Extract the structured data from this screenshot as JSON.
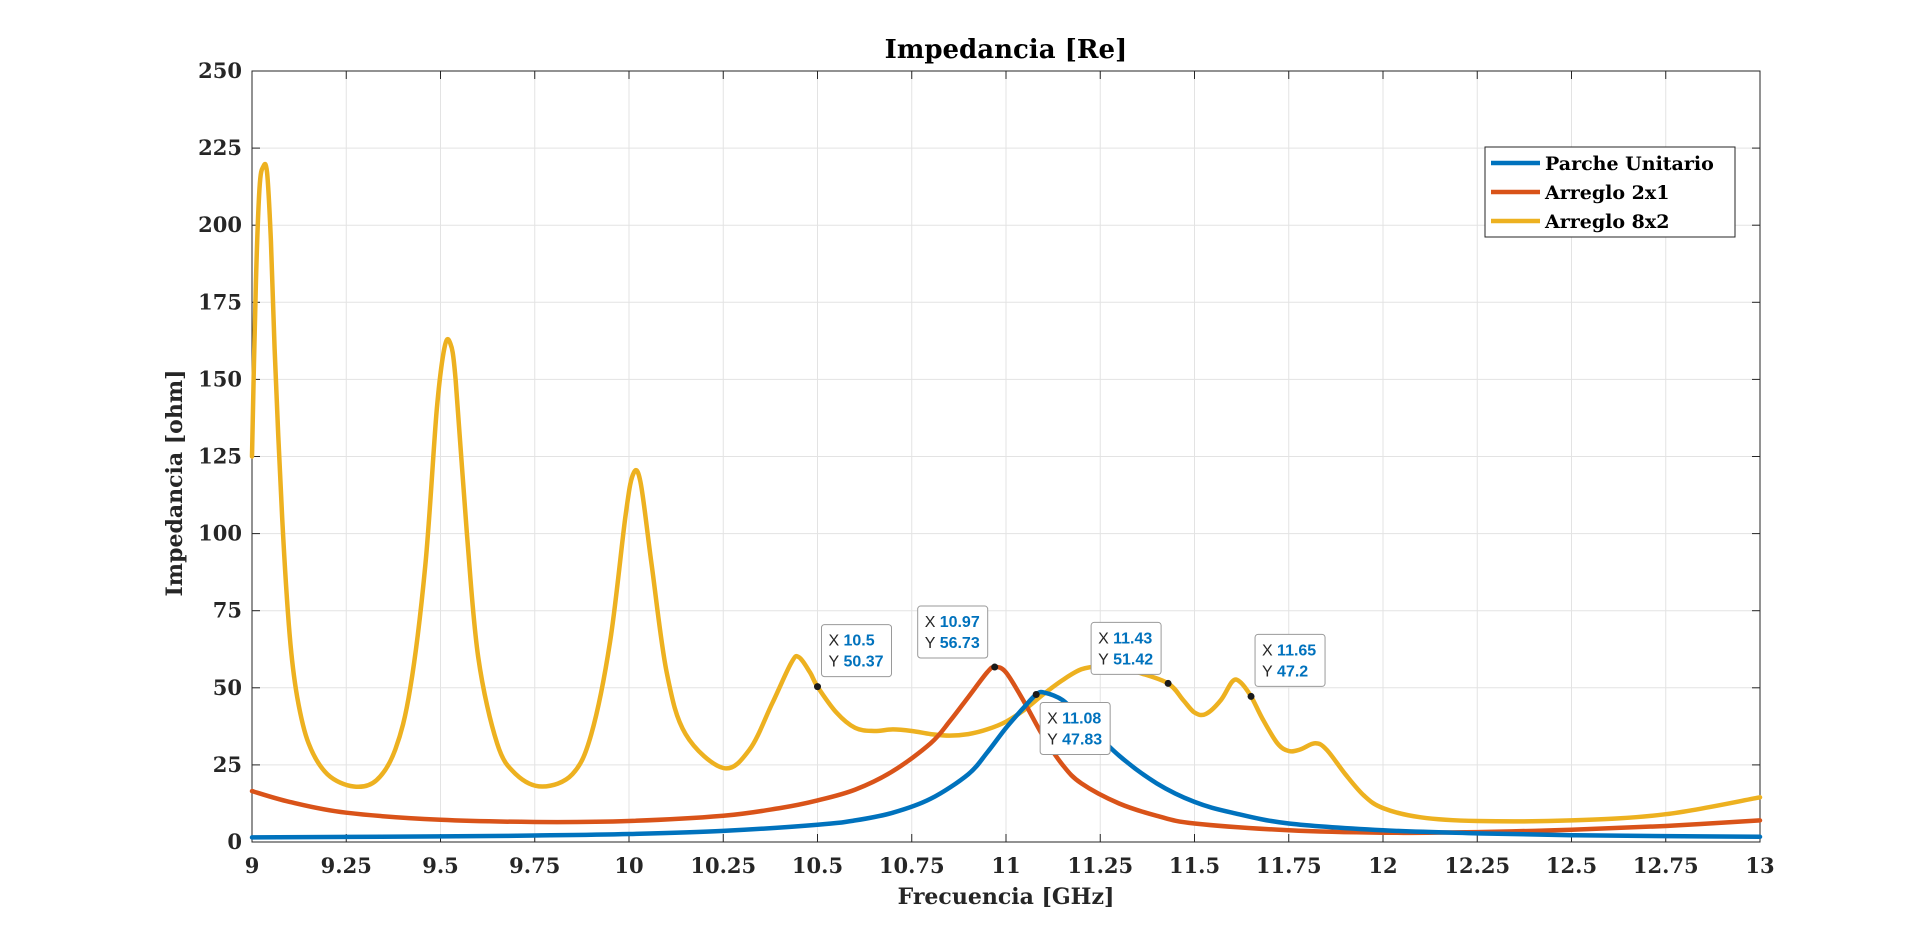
{
  "chart_data": {
    "type": "line",
    "title": "Impedancia [Re]",
    "xlabel": "Frecuencia [GHz]",
    "ylabel": "Impedancia [ohm]",
    "xlim": [
      9,
      13
    ],
    "ylim": [
      0,
      250
    ],
    "x_ticks": [
      "9",
      "9.25",
      "9.5",
      "9.75",
      "10",
      "10.25",
      "10.5",
      "10.75",
      "11",
      "11.25",
      "11.5",
      "11.75",
      "12",
      "12.25",
      "12.5",
      "12.75",
      "13"
    ],
    "y_ticks": [
      "0",
      "25",
      "50",
      "75",
      "100",
      "125",
      "150",
      "175",
      "200",
      "225",
      "250"
    ],
    "grid": true,
    "legend_position": "top-right",
    "series": [
      {
        "name": "Parche Unitario",
        "color": "#0072BD",
        "points": [
          [
            9,
            1.5
          ],
          [
            9.5,
            1.8
          ],
          [
            9.75,
            2.1
          ],
          [
            10,
            2.6
          ],
          [
            10.25,
            3.6
          ],
          [
            10.5,
            5.6
          ],
          [
            10.6,
            7
          ],
          [
            10.7,
            9.5
          ],
          [
            10.8,
            14
          ],
          [
            10.9,
            22
          ],
          [
            10.95,
            29
          ],
          [
            11,
            37
          ],
          [
            11.05,
            44
          ],
          [
            11.08,
            47.83
          ],
          [
            11.1,
            48.5
          ],
          [
            11.15,
            46
          ],
          [
            11.2,
            40
          ],
          [
            11.3,
            28
          ],
          [
            11.4,
            19
          ],
          [
            11.5,
            13
          ],
          [
            11.6,
            9.5
          ],
          [
            11.75,
            6
          ],
          [
            12,
            3.8
          ],
          [
            12.25,
            2.8
          ],
          [
            12.5,
            2.2
          ],
          [
            12.75,
            1.9
          ],
          [
            13,
            1.7
          ]
        ]
      },
      {
        "name": "Arreglo 2x1",
        "color": "#D95319",
        "points": [
          [
            9,
            16.5
          ],
          [
            9.1,
            13
          ],
          [
            9.25,
            9.5
          ],
          [
            9.5,
            7.2
          ],
          [
            9.75,
            6.5
          ],
          [
            10,
            6.8
          ],
          [
            10.25,
            8.5
          ],
          [
            10.4,
            11
          ],
          [
            10.5,
            13.5
          ],
          [
            10.6,
            17
          ],
          [
            10.7,
            23
          ],
          [
            10.8,
            32
          ],
          [
            10.85,
            39
          ],
          [
            10.9,
            47
          ],
          [
            10.95,
            55
          ],
          [
            10.97,
            56.73
          ],
          [
            11,
            55
          ],
          [
            11.05,
            45
          ],
          [
            11.1,
            34
          ],
          [
            11.15,
            25
          ],
          [
            11.2,
            19
          ],
          [
            11.3,
            12.5
          ],
          [
            11.4,
            8.5
          ],
          [
            11.5,
            6
          ],
          [
            11.75,
            3.8
          ],
          [
            12,
            3
          ],
          [
            12.25,
            3.2
          ],
          [
            12.5,
            4
          ],
          [
            12.75,
            5.2
          ],
          [
            13,
            7
          ]
        ]
      },
      {
        "name": "Arreglo 8x2",
        "color": "#EDB120",
        "points": [
          [
            9,
            125
          ],
          [
            9.01,
            180
          ],
          [
            9.02,
            212
          ],
          [
            9.03,
            219
          ],
          [
            9.04,
            217
          ],
          [
            9.05,
            195
          ],
          [
            9.06,
            160
          ],
          [
            9.08,
            105
          ],
          [
            9.1,
            67
          ],
          [
            9.12,
            47
          ],
          [
            9.15,
            32
          ],
          [
            9.2,
            22
          ],
          [
            9.27,
            18
          ],
          [
            9.33,
            20
          ],
          [
            9.38,
            30
          ],
          [
            9.42,
            50
          ],
          [
            9.46,
            90
          ],
          [
            9.49,
            140
          ],
          [
            9.51,
            160
          ],
          [
            9.525,
            162
          ],
          [
            9.54,
            150
          ],
          [
            9.57,
            100
          ],
          [
            9.6,
            60
          ],
          [
            9.65,
            32
          ],
          [
            9.7,
            22
          ],
          [
            9.77,
            18
          ],
          [
            9.85,
            22
          ],
          [
            9.9,
            35
          ],
          [
            9.95,
            65
          ],
          [
            9.99,
            105
          ],
          [
            10.01,
            119
          ],
          [
            10.03,
            117
          ],
          [
            10.06,
            90
          ],
          [
            10.1,
            55
          ],
          [
            10.15,
            35
          ],
          [
            10.25,
            24
          ],
          [
            10.32,
            30
          ],
          [
            10.38,
            45
          ],
          [
            10.43,
            58
          ],
          [
            10.45,
            60
          ],
          [
            10.48,
            55
          ],
          [
            10.5,
            50.37
          ],
          [
            10.55,
            42
          ],
          [
            10.6,
            37
          ],
          [
            10.65,
            36
          ],
          [
            10.7,
            36.5
          ],
          [
            10.75,
            36
          ],
          [
            10.8,
            35
          ],
          [
            10.85,
            34.5
          ],
          [
            10.9,
            35
          ],
          [
            10.95,
            36.5
          ],
          [
            11,
            39
          ],
          [
            11.05,
            43
          ],
          [
            11.1,
            48
          ],
          [
            11.15,
            52.5
          ],
          [
            11.2,
            56
          ],
          [
            11.25,
            57
          ],
          [
            11.3,
            56.5
          ],
          [
            11.35,
            55
          ],
          [
            11.43,
            51.42
          ],
          [
            11.47,
            46
          ],
          [
            11.5,
            42
          ],
          [
            11.53,
            41.5
          ],
          [
            11.57,
            46
          ],
          [
            11.6,
            52
          ],
          [
            11.62,
            52
          ],
          [
            11.65,
            47.2
          ],
          [
            11.68,
            40
          ],
          [
            11.72,
            32
          ],
          [
            11.75,
            29.5
          ],
          [
            11.78,
            30
          ],
          [
            11.82,
            32
          ],
          [
            11.85,
            30
          ],
          [
            11.9,
            22
          ],
          [
            11.95,
            15
          ],
          [
            12,
            11
          ],
          [
            12.1,
            8
          ],
          [
            12.25,
            6.8
          ],
          [
            12.5,
            7
          ],
          [
            12.75,
            9
          ],
          [
            13,
            14.5
          ]
        ]
      }
    ],
    "datatips": [
      {
        "x_label": "X",
        "x": "10.5",
        "y_label": "Y",
        "y": "50.37",
        "series": "Arreglo 8x2"
      },
      {
        "x_label": "X",
        "x": "10.97",
        "y_label": "Y",
        "y": "56.73",
        "series": "Arreglo 2x1"
      },
      {
        "x_label": "X",
        "x": "11.08",
        "y_label": "Y",
        "y": "47.83",
        "series": "Parche Unitario"
      },
      {
        "x_label": "X",
        "x": "11.43",
        "y_label": "Y",
        "y": "51.42",
        "series": "Arreglo 8x2"
      },
      {
        "x_label": "X",
        "x": "11.65",
        "y_label": "Y",
        "y": "47.2",
        "series": "Arreglo 8x2"
      }
    ]
  }
}
